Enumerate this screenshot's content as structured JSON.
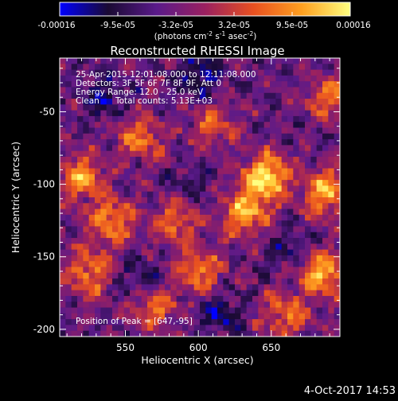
{
  "chart_data": {
    "type": "heatmap",
    "title": "Reconstructed RHESSI Image",
    "xlabel": "Heliocentric X (arcsec)",
    "ylabel": "Heliocentric Y (arcsec)",
    "xlim": [
      505,
      697
    ],
    "ylim": [
      -205,
      -13
    ],
    "xticks": [
      550,
      600,
      650
    ],
    "yticks": [
      -50,
      -100,
      -150,
      -200
    ],
    "colorbar": {
      "min": -0.00016,
      "max": 0.00016,
      "tick_labels": [
        "-0.00016",
        "-9.5e-05",
        "-3.2e-05",
        "3.2e-05",
        "9.5e-05",
        "0.00016"
      ],
      "label_base": "(photons cm",
      "label_sup1": "-2",
      "label_mid1": " s",
      "label_sup2": "-1",
      "label_mid2": " asec",
      "label_sup3": "-2",
      "label_end": ")",
      "colormap": [
        "#0000ff",
        "#1a0a33",
        "#5a1a8a",
        "#9a2060",
        "#e85020",
        "#ffa020",
        "#ffff80"
      ]
    },
    "info": {
      "time_range": "25-Apr-2015 12:01:08.000 to 12:11:08.000",
      "detectors": "Detectors: 3F 5F 6F 7F 8F 9F, Att 0",
      "energy_range": "Energy Range: 12.0 - 25.0 keV",
      "method": "Clean",
      "total_counts": "Total counts: 5.13E+03",
      "peak": "Position of Peak = [647,-95]"
    },
    "peak_position": [
      647,
      -95
    ],
    "grid": false,
    "bright_sources": [
      {
        "x": 647,
        "y": -95,
        "intensity": 1.0
      },
      {
        "x": 632,
        "y": -120,
        "intensity": 0.78
      },
      {
        "x": 688,
        "y": -105,
        "intensity": 0.8
      },
      {
        "x": 685,
        "y": -162,
        "intensity": 0.82
      },
      {
        "x": 520,
        "y": -95,
        "intensity": 0.72
      },
      {
        "x": 540,
        "y": -125,
        "intensity": 0.7
      },
      {
        "x": 560,
        "y": -68,
        "intensity": 0.6
      },
      {
        "x": 600,
        "y": -160,
        "intensity": 0.62
      },
      {
        "x": 570,
        "y": -185,
        "intensity": 0.55
      },
      {
        "x": 525,
        "y": -160,
        "intensity": 0.65
      },
      {
        "x": 660,
        "y": -190,
        "intensity": 0.58
      },
      {
        "x": 610,
        "y": -60,
        "intensity": 0.5
      },
      {
        "x": 690,
        "y": -40,
        "intensity": 0.55
      },
      {
        "x": 585,
        "y": -125,
        "intensity": 0.56
      }
    ],
    "dark_sources": [
      {
        "x": 600,
        "y": -25,
        "intensity": 0.9
      },
      {
        "x": 535,
        "y": -40,
        "intensity": 0.7
      },
      {
        "x": 615,
        "y": -190,
        "intensity": 0.8
      },
      {
        "x": 560,
        "y": -165,
        "intensity": 0.6
      },
      {
        "x": 595,
        "y": -100,
        "intensity": 0.5
      },
      {
        "x": 660,
        "y": -145,
        "intensity": 0.55
      }
    ]
  },
  "footer": {
    "timestamp": "4-Oct-2017 14:53"
  }
}
